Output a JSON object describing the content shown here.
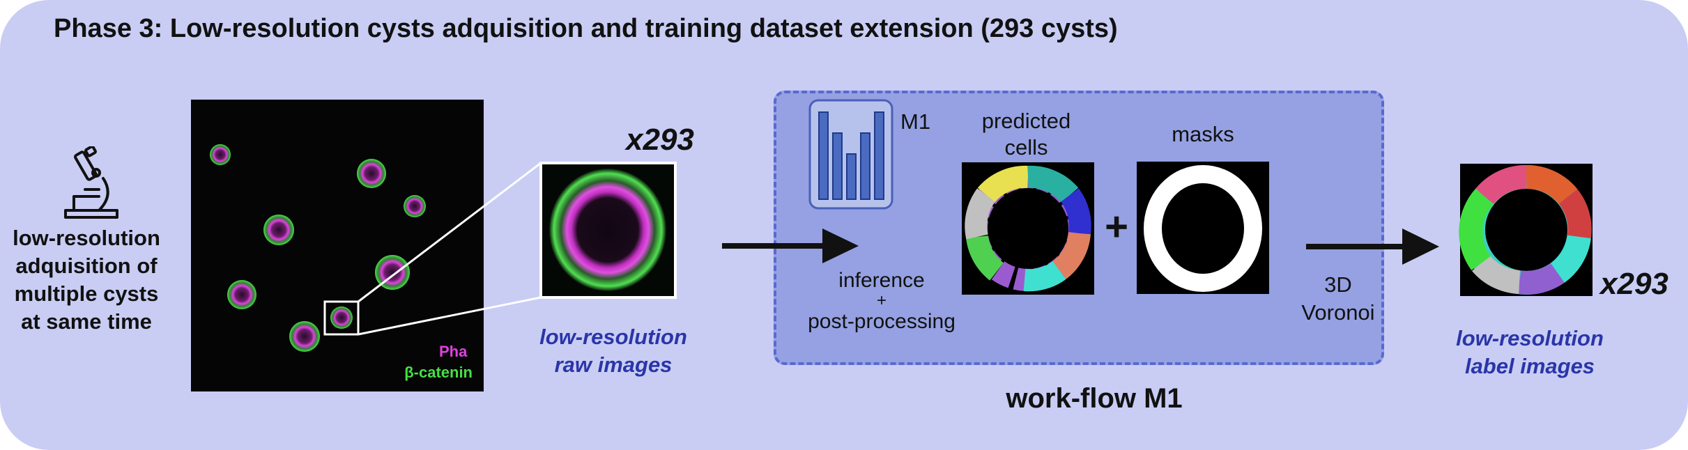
{
  "title": "Phase 3: Low-resolution cysts adquisition and training dataset extension (293 cysts)",
  "acquisition": {
    "label_lines": [
      "low-resolution",
      "adquisition of",
      "multiple cysts",
      "at same time"
    ],
    "icon": "microscope-icon"
  },
  "micrograph": {
    "legend_pha": "Pha",
    "legend_catenin": "β-catenin",
    "colors": {
      "pha": "#e040e0",
      "catenin": "#44e044"
    }
  },
  "raw": {
    "count": "x293",
    "caption_lines": [
      "low-resolution",
      "raw images"
    ]
  },
  "workflow": {
    "model_label": "M1",
    "model_icon": "bar-chart-icon",
    "inference_lines": [
      "inference",
      "+",
      "post-processing"
    ],
    "predicted_lines": [
      "predicted",
      "cells"
    ],
    "masks_label": "masks",
    "plus": "+",
    "voronoi_lines": [
      "3D",
      "Voronoi"
    ],
    "title": "work-flow M1"
  },
  "output": {
    "count": "x293",
    "caption_lines": [
      "low-resolution",
      "label images"
    ]
  },
  "colors": {
    "panel": "#c9cdf4",
    "workflow_box": "#95a1e2",
    "workflow_border": "#5a68cf",
    "caption_blue": "#2a35a8"
  }
}
